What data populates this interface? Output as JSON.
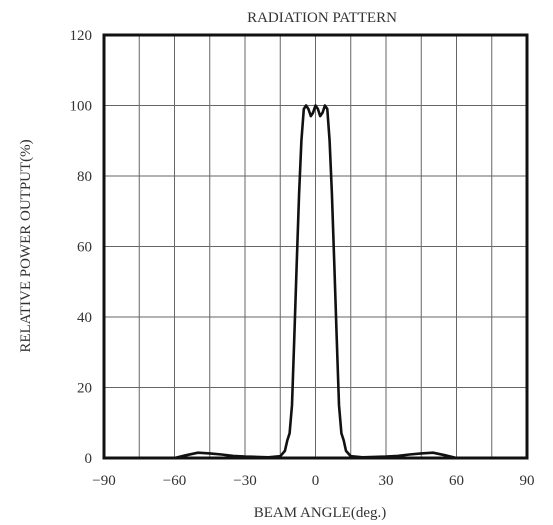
{
  "chart_data": {
    "type": "line",
    "title": "RADIATION PATTERN",
    "xlabel": "BEAM ANGLE(deg.)",
    "ylabel": "RELATIVE POWER OUTPUT(%)",
    "xlim": [
      -90,
      90
    ],
    "ylim": [
      0,
      120
    ],
    "xticks": [
      -90,
      -60,
      -30,
      0,
      30,
      60,
      90
    ],
    "xtick_labels": [
      "−90",
      "−60",
      "−30",
      "0",
      "30",
      "60",
      "90"
    ],
    "yticks": [
      0,
      20,
      40,
      60,
      80,
      100,
      120
    ],
    "ytick_labels": [
      "0",
      "20",
      "40",
      "60",
      "80",
      "100",
      "120"
    ],
    "grid": true,
    "series": [
      {
        "values_x": [
          -90,
          -60,
          -55,
          -50,
          -45,
          -40,
          -35,
          -30,
          -25,
          -20,
          -15,
          -13,
          -12,
          -11,
          -10,
          -9,
          -8,
          -7,
          -6,
          -5,
          -4,
          -3,
          -2,
          -1,
          0,
          1,
          2,
          3,
          4,
          5,
          6,
          7,
          8,
          9,
          10,
          11,
          12,
          13,
          15,
          20,
          25,
          30,
          35,
          40,
          45,
          50,
          55,
          60,
          90
        ],
        "values_y": [
          0,
          0,
          0.8,
          1.5,
          1.3,
          1.0,
          0.6,
          0.4,
          0.3,
          0.2,
          0.5,
          2,
          5,
          7,
          15,
          35,
          55,
          75,
          90,
          99,
          100,
          99,
          97,
          98,
          100,
          99,
          97,
          98,
          100,
          99,
          90,
          75,
          55,
          35,
          15,
          7,
          5,
          2,
          0.5,
          0.2,
          0.3,
          0.4,
          0.6,
          1.0,
          1.3,
          1.5,
          0.8,
          0,
          0
        ]
      }
    ]
  }
}
